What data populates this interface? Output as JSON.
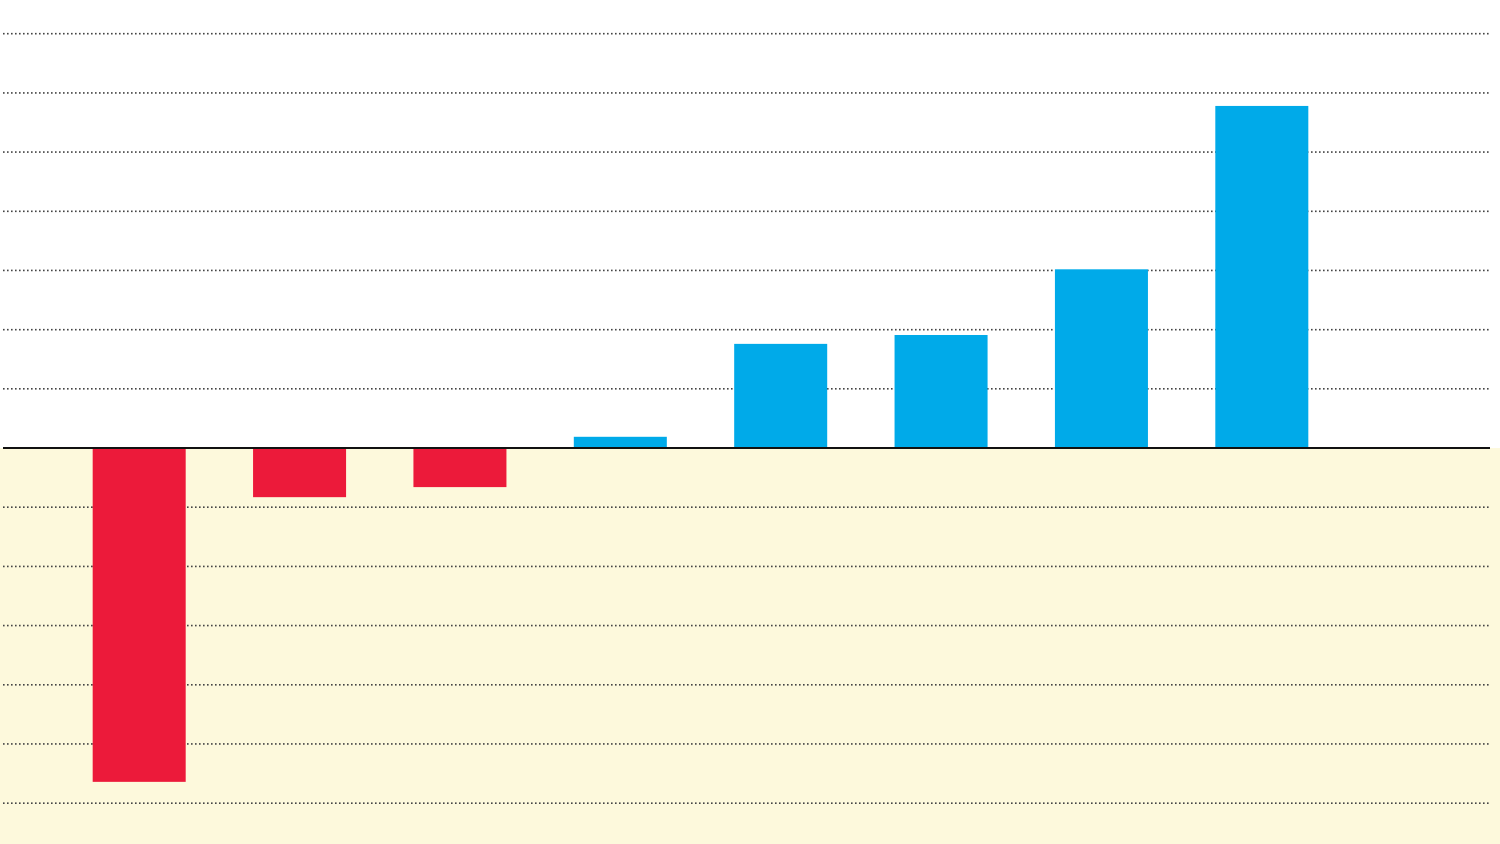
{
  "chart_data": {
    "type": "bar",
    "categories": [
      null,
      null,
      null,
      null,
      null,
      null,
      null,
      null
    ],
    "values": [
      -5.64,
      -0.83,
      -0.66,
      0.19,
      1.76,
      1.91,
      3.02,
      5.78
    ],
    "positive_color": "#00aae9",
    "negative_color": "#ec1a3a",
    "below_zero_fill": "#fdf9dc",
    "ylim": [
      -6.69,
      7.57
    ],
    "yticks": [
      -6,
      -5,
      -4,
      -3,
      -2,
      -1,
      0,
      1,
      2,
      3,
      4,
      5,
      6,
      7
    ],
    "grid": true
  }
}
